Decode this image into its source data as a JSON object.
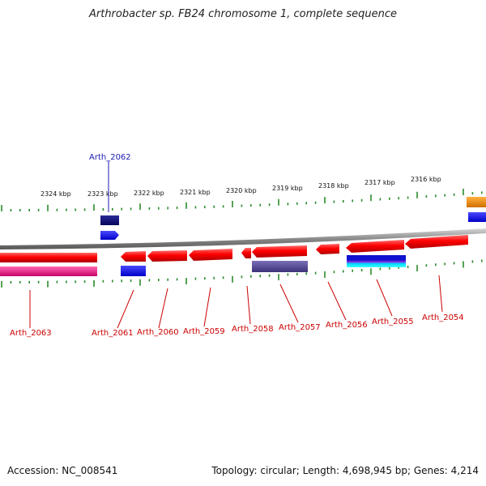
{
  "title": "Arthrobacter sp. FB24 chromosome 1, complete sequence",
  "accession": "Accession: NC_008541",
  "summary": "Topology: circular; Length: 4,698,945 bp; Genes: 4,214",
  "ticks": [
    "2324 kbp",
    "2323 kbp",
    "2322 kbp",
    "2321 kbp",
    "2320 kbp",
    "2319 kbp",
    "2318 kbp",
    "2317 kbp",
    "2316 kbp"
  ],
  "genes": [
    {
      "id": "Arth_2062",
      "strand": "top",
      "color": "#1b1bb0"
    },
    {
      "id": "Arth_2063",
      "strand": "bottom",
      "color": "#cc0000"
    },
    {
      "id": "Arth_2061",
      "strand": "bottom",
      "color": "#cc0000"
    },
    {
      "id": "Arth_2060",
      "strand": "bottom",
      "color": "#cc0000"
    },
    {
      "id": "Arth_2059",
      "strand": "bottom",
      "color": "#cc0000"
    },
    {
      "id": "Arth_2058",
      "strand": "bottom",
      "color": "#cc0000"
    },
    {
      "id": "Arth_2057",
      "strand": "bottom",
      "color": "#cc0000"
    },
    {
      "id": "Arth_2056",
      "strand": "bottom",
      "color": "#cc0000"
    },
    {
      "id": "Arth_2055",
      "strand": "bottom",
      "color": "#cc0000"
    },
    {
      "id": "Arth_2054",
      "strand": "bottom",
      "color": "#cc0000"
    }
  ],
  "colors": {
    "cds": "#ee1111",
    "tick": "#2a8a2a",
    "backbone": "#888888",
    "label_top": "#1b1bb0",
    "label_bottom": "#cc0000"
  }
}
